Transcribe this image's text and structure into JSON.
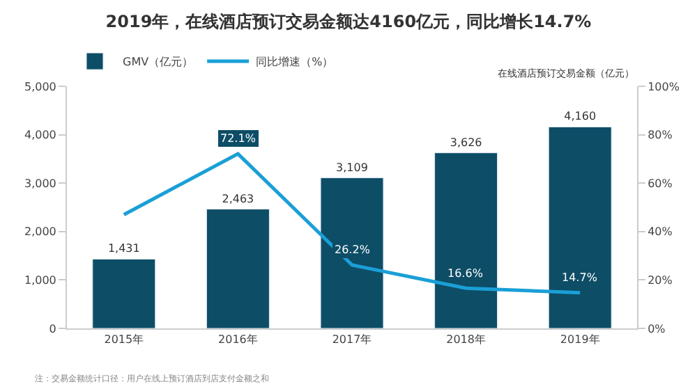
{
  "chart_data": {
    "type": "bar",
    "title": "2019年，在线酒店预订交易金额达4160亿元，同比增长14.7%",
    "subtitle": "在线酒店预订交易金额（亿元）",
    "categories": [
      "2015年",
      "2016年",
      "2017年",
      "2018年",
      "2019年"
    ],
    "series": [
      {
        "name": "GMV（亿元）",
        "color": "#0d4d66",
        "values": [
          1431,
          2463,
          3109,
          3626,
          4160
        ],
        "value_labels": [
          "1,431",
          "2,463",
          "3,109",
          "3,626",
          "4,160"
        ]
      },
      {
        "name": "同比增速（%）",
        "type": "line",
        "axis": "y2",
        "color": "#1a9fd6",
        "values": [
          47,
          72.1,
          26.2,
          16.6,
          14.7
        ],
        "value_labels": [
          null,
          "72.1%",
          "26.2%",
          "16.6%",
          "14.7%"
        ]
      }
    ],
    "ylim": [
      0,
      5000
    ],
    "yticks": [
      {
        "value": 0,
        "label": "0"
      },
      {
        "value": 1000,
        "label": "1,000"
      },
      {
        "value": 2000,
        "label": "2,000"
      },
      {
        "value": 3000,
        "label": "3,000"
      },
      {
        "value": 4000,
        "label": "4,000"
      },
      {
        "value": 5000,
        "label": "5,000"
      }
    ],
    "y2lim": [
      0,
      100
    ],
    "y2ticks": [
      {
        "value": 0,
        "label": "0%"
      },
      {
        "value": 20,
        "label": "20%"
      },
      {
        "value": 40,
        "label": "40%"
      },
      {
        "value": 60,
        "label": "60%"
      },
      {
        "value": 80,
        "label": "80%"
      },
      {
        "value": 100,
        "label": "100%"
      }
    ],
    "legend": "top left",
    "annotations": [
      "注：交易金额统计口径：用户在线上预订酒店到店支付金额之和"
    ]
  }
}
